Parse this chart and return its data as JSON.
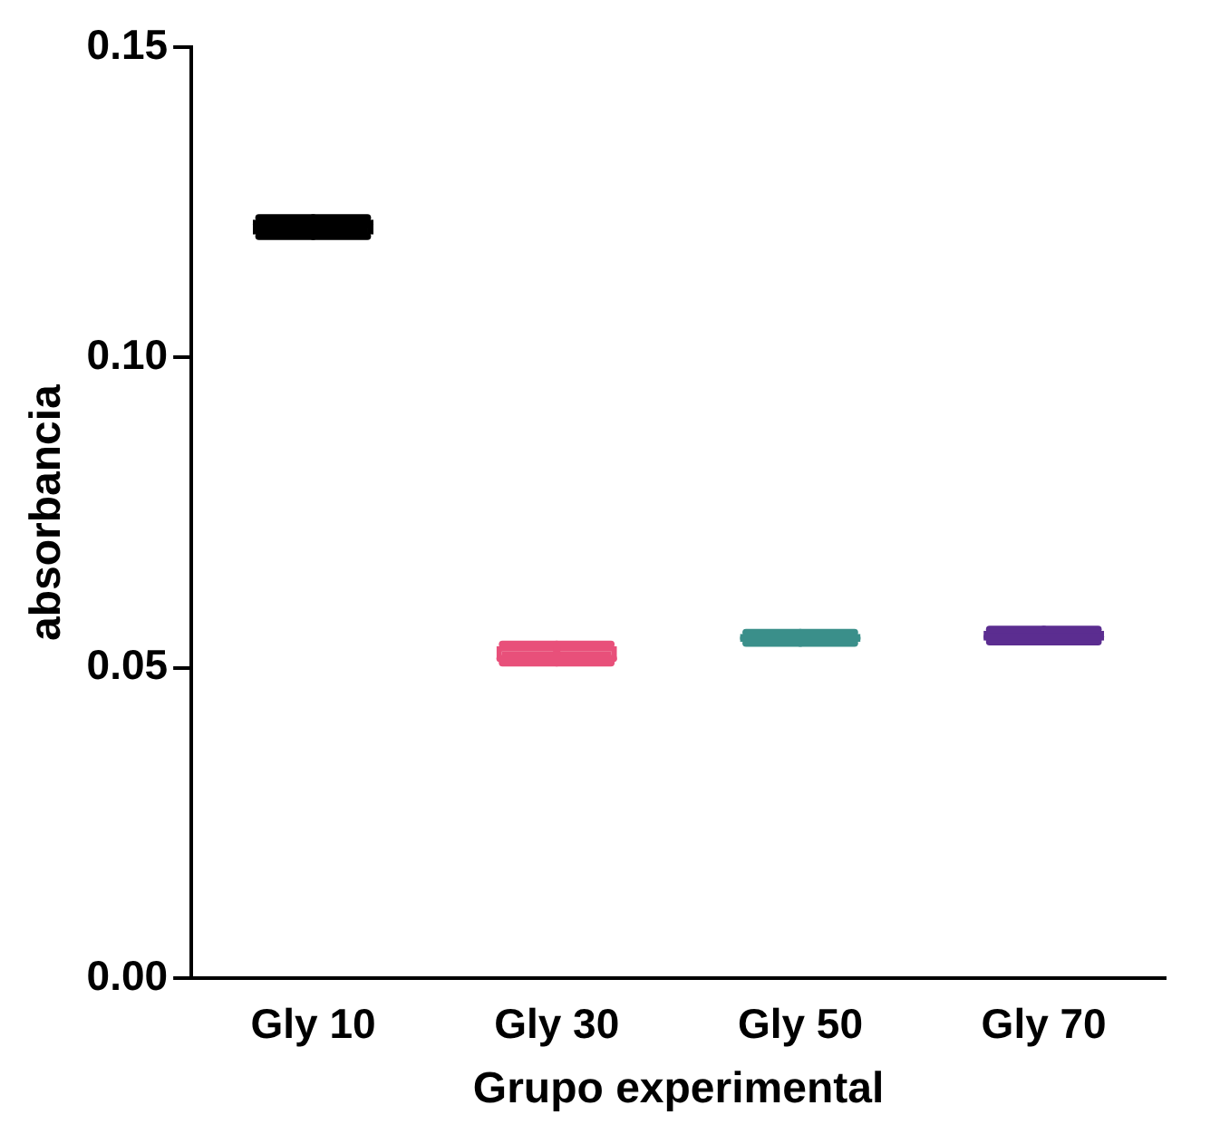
{
  "chart_data": {
    "type": "box",
    "xlabel": "Grupo experimental",
    "ylabel": "absorbancia",
    "categories": [
      "Gly 10",
      "Gly 30",
      "Gly 50",
      "Gly 70"
    ],
    "colors": [
      "#000000",
      "#e8507a",
      "#3a8f8a",
      "#5b2d90"
    ],
    "boxes": [
      {
        "low": 0.1195,
        "q1": 0.1198,
        "median": 0.1215,
        "q3": 0.1222,
        "high": 0.1225
      },
      {
        "low": 0.0508,
        "q1": 0.0512,
        "median": 0.0515,
        "q3": 0.0535,
        "high": 0.0538
      },
      {
        "low": 0.054,
        "q1": 0.0542,
        "median": 0.0548,
        "q3": 0.0555,
        "high": 0.0557
      },
      {
        "low": 0.0542,
        "q1": 0.0544,
        "median": 0.055,
        "q3": 0.056,
        "high": 0.0562
      }
    ],
    "ylim": [
      0,
      0.15
    ],
    "yticks": [
      {
        "value": 0,
        "label": "0.00"
      },
      {
        "value": 0.05,
        "label": "0.05"
      },
      {
        "value": 0.1,
        "label": "0.10"
      },
      {
        "value": 0.15,
        "label": "0.15"
      }
    ],
    "grid": false,
    "legend": false
  }
}
